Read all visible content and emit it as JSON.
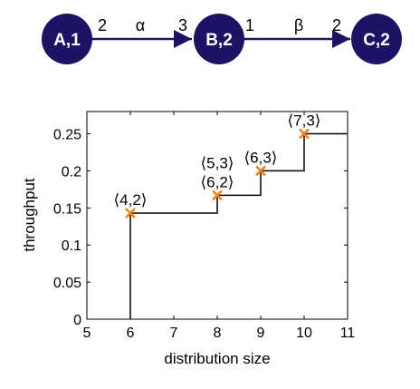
{
  "diagram": {
    "nodes": [
      {
        "id": "A",
        "label": "A,1",
        "color": "#1c1266"
      },
      {
        "id": "B",
        "label": "B,2",
        "color": "#1c1266"
      },
      {
        "id": "C",
        "label": "C,2",
        "color": "#1c1266"
      }
    ],
    "edges": [
      {
        "from": "A",
        "to": "B",
        "label": "α",
        "left_num": "2",
        "right_num": "3"
      },
      {
        "from": "B",
        "to": "C",
        "label": "β",
        "left_num": "1",
        "right_num": "2"
      }
    ],
    "edge_color": "#1c1266"
  },
  "chart_data": {
    "type": "line",
    "title": "",
    "xlabel": "distribution size",
    "ylabel": "throughput",
    "xlim": [
      5,
      11
    ],
    "ylim": [
      0,
      0.28
    ],
    "xticks": [
      5,
      6,
      7,
      8,
      9,
      10,
      11
    ],
    "yticks": [
      0,
      0.05,
      0.1,
      0.15,
      0.2,
      0.25
    ],
    "ytick_labels": [
      "0",
      "0.05",
      "0.1",
      "0.15",
      "0.2",
      "0.25"
    ],
    "grid": false,
    "legend": "none",
    "step_line": {
      "x": [
        6,
        6,
        8,
        8,
        9,
        9,
        10,
        10,
        11
      ],
      "y": [
        0,
        0.143,
        0.143,
        0.167,
        0.167,
        0.2,
        0.2,
        0.25,
        0.25
      ],
      "color": "#000000"
    },
    "points": [
      {
        "x": 6,
        "y": 0.143,
        "labels": [
          "⟨4,2⟩"
        ]
      },
      {
        "x": 8,
        "y": 0.167,
        "labels": [
          "⟨5,3⟩",
          "⟨6,2⟩"
        ]
      },
      {
        "x": 9,
        "y": 0.2,
        "labels": [
          "⟨6,3⟩"
        ]
      },
      {
        "x": 10,
        "y": 0.25,
        "labels": [
          "⟨7,3⟩"
        ]
      }
    ],
    "marker": "x",
    "marker_color": "#ff7f0e"
  }
}
